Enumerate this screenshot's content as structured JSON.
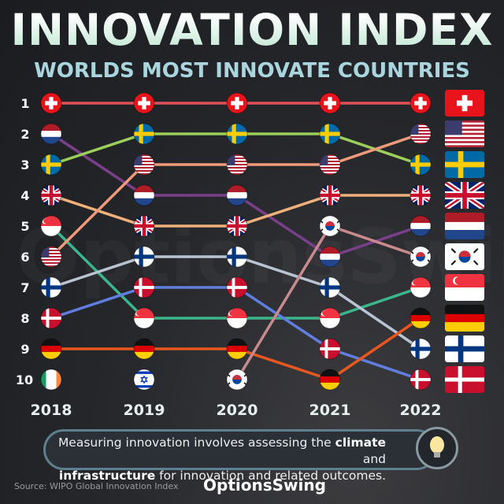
{
  "header": {
    "title": "INNOVATION INDEX",
    "subtitle": "WORLDS MOST INNOVATE COUNTRIES"
  },
  "chart_data": {
    "type": "bump",
    "years": [
      "2018",
      "2019",
      "2020",
      "2021",
      "2022"
    ],
    "rank_labels": [
      "1",
      "2",
      "3",
      "4",
      "5",
      "6",
      "7",
      "8",
      "9",
      "10"
    ],
    "y_axis": "rank (1 at top)",
    "series": [
      {
        "flag": "switzerland",
        "ranks": [
          1,
          1,
          1,
          1,
          1
        ],
        "color": "#e0505a"
      },
      {
        "flag": "netherlands",
        "ranks": [
          2,
          4,
          4,
          6,
          5
        ],
        "color": "#7a3f8a"
      },
      {
        "flag": "sweden",
        "ranks": [
          3,
          2,
          2,
          2,
          3
        ],
        "color": "#9ccf5a"
      },
      {
        "flag": "united-kingdom",
        "ranks": [
          4,
          5,
          5,
          4,
          4
        ],
        "color": "#f0b07a"
      },
      {
        "flag": "singapore",
        "ranks": [
          5,
          8,
          8,
          8,
          7
        ],
        "color": "#3bb58a"
      },
      {
        "flag": "united-states",
        "ranks": [
          6,
          3,
          3,
          3,
          2
        ],
        "color": "#f09a7a"
      },
      {
        "flag": "finland",
        "ranks": [
          7,
          6,
          6,
          7,
          9
        ],
        "color": "#b8c4d4"
      },
      {
        "flag": "denmark",
        "ranks": [
          8,
          7,
          7,
          9,
          10
        ],
        "color": "#5f7ee0"
      },
      {
        "flag": "germany",
        "ranks": [
          9,
          9,
          9,
          10,
          8
        ],
        "color": "#e8571f"
      },
      {
        "flag": "ireland",
        "ranks": [
          10,
          null,
          null,
          null,
          null
        ],
        "color": "#3aa55a"
      },
      {
        "flag": "israel",
        "ranks": [
          null,
          10,
          null,
          null,
          null
        ],
        "color": "#3a6fd0"
      },
      {
        "flag": "south-korea",
        "ranks": [
          null,
          null,
          10,
          5,
          6
        ],
        "color": "#c98a8e"
      }
    ],
    "legend": [
      "switzerland",
      "united-states",
      "sweden",
      "united-kingdom",
      "netherlands",
      "south-korea",
      "singapore",
      "germany",
      "finland",
      "denmark"
    ],
    "legend_placement": "right"
  },
  "caption": {
    "part1": "Measuring innovation involves assessing the ",
    "bold1": "climate",
    "part2": " and",
    "bold2": "infrastructure",
    "part3": " for innovation and related outcomes.",
    "icon": "lightbulb-icon"
  },
  "footer": {
    "source": "Source: WIPO Global Innovation Index",
    "logo": "OptionsSwing"
  }
}
